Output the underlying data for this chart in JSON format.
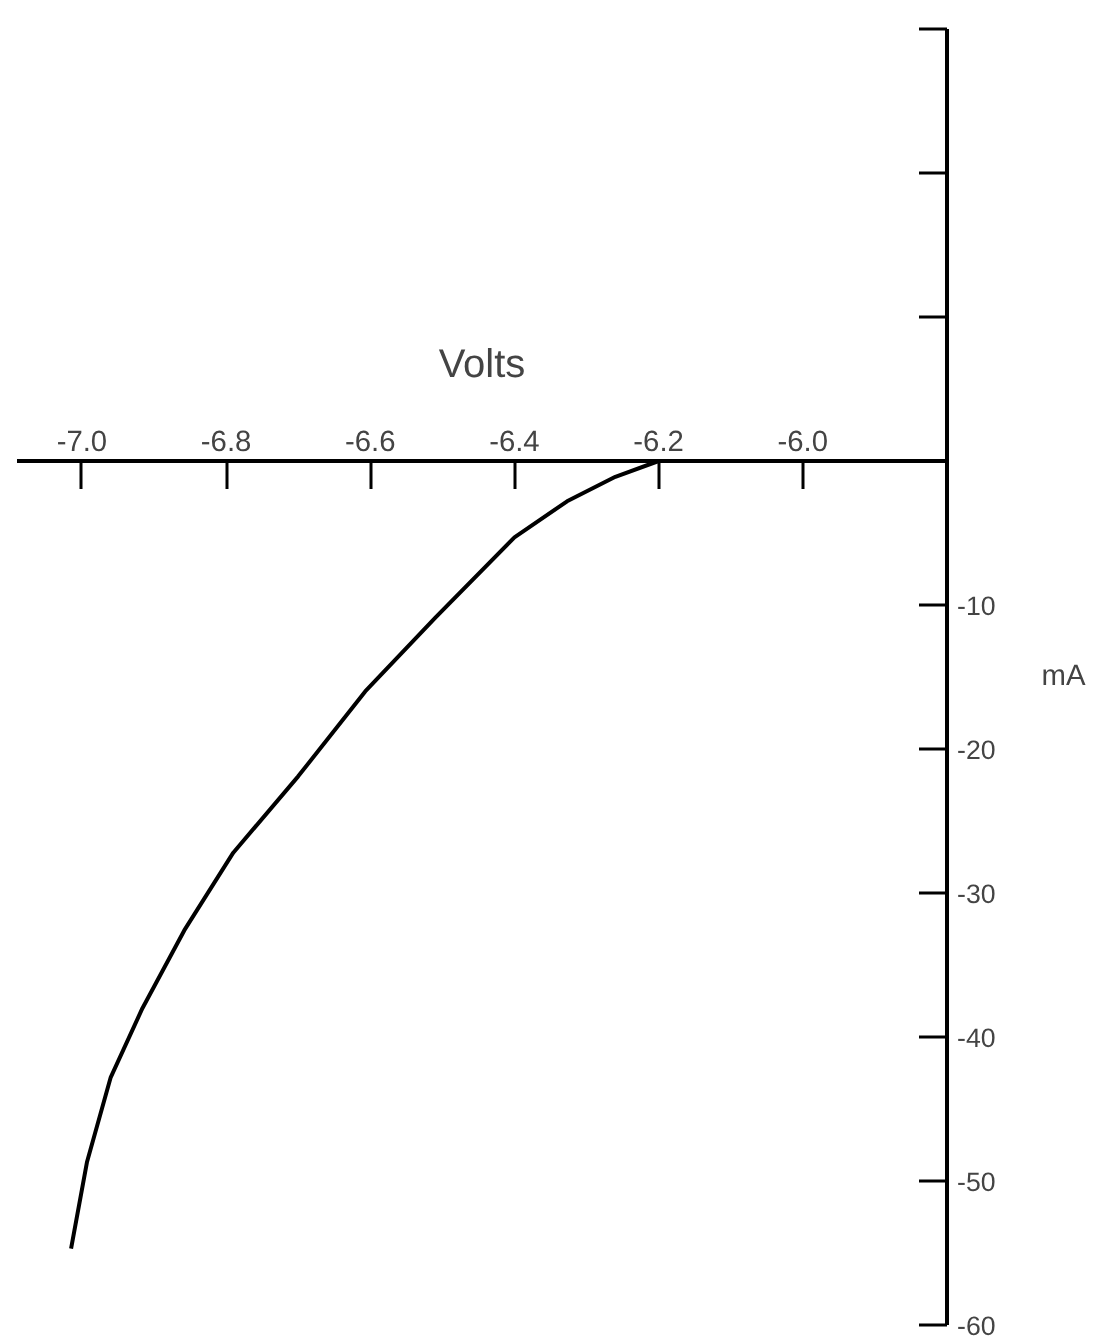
{
  "chart_data": {
    "type": "line",
    "xlabel": "Volts",
    "ylabel": "mA",
    "x": [
      -7.015,
      -6.993,
      -6.96,
      -6.916,
      -6.858,
      -6.79,
      -6.7,
      -6.607,
      -6.51,
      -6.4,
      -6.327,
      -6.26,
      -6.2
    ],
    "series": [
      {
        "color": "#000000",
        "values": [
          -54.7,
          -48.7,
          -42.8,
          -38.0,
          -32.6,
          -27.2,
          -21.9,
          -16.0,
          -10.9,
          -5.3,
          -2.8,
          -1.1,
          0
        ]
      }
    ],
    "xlim": [
      -7.09,
      -5.8
    ],
    "ylim": [
      -60,
      30
    ],
    "xticks": [
      {
        "value": -7,
        "label": "-7.0"
      },
      -6.8,
      -6.6,
      -6.4,
      -6.2,
      {
        "value": -6,
        "label": "-6.0"
      }
    ],
    "yticks": [
      -60,
      -50,
      -40,
      -30,
      -20,
      -10,
      {
        "value": 10,
        "label": null
      },
      {
        "value": 20,
        "label": null
      },
      {
        "value": 30,
        "label": null
      }
    ]
  }
}
